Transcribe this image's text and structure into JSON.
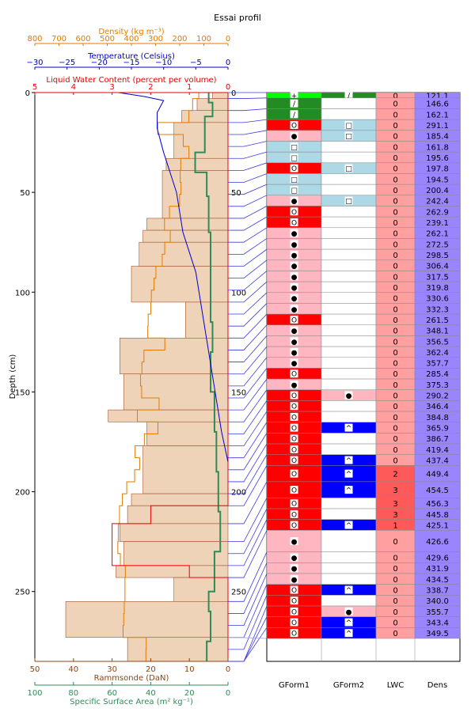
{
  "chart_data": {
    "type": "profile",
    "title": "Essai profil",
    "ylabel": "Depth (cm)",
    "y_ticks": [
      "0",
      "50",
      "100",
      "150",
      "200",
      "250"
    ],
    "ylim": [
      0,
      285
    ],
    "depth_ticks_inner": [
      "0",
      "50",
      "100",
      "150",
      "200",
      "250"
    ],
    "top_axes": [
      {
        "label": "Density (kg m⁻³)",
        "color": "#e07b00",
        "range": [
          800,
          0
        ],
        "ticks": [
          "800",
          "700",
          "600",
          "500",
          "400",
          "300",
          "200",
          "100",
          "0"
        ]
      },
      {
        "label": "Temperature (Celsius)",
        "color": "#0000cc",
        "range": [
          -30,
          0
        ],
        "ticks": [
          "−30",
          "−25",
          "−20",
          "−15",
          "−10",
          "−5",
          "0"
        ]
      },
      {
        "label": "Liquid Water Content (percent per volume)",
        "color": "#ee0000",
        "range": [
          5,
          0
        ],
        "ticks": [
          "5",
          "4",
          "3",
          "2",
          "1",
          "0"
        ]
      }
    ],
    "bottom_axes": [
      {
        "label": "Rammsonde (DaN)",
        "color": "#8b4513",
        "range": [
          50,
          0
        ],
        "ticks": [
          "50",
          "40",
          "30",
          "20",
          "10",
          "0"
        ]
      },
      {
        "label": "Specific Surface Area (m²  kg⁻¹)",
        "color": "#2e8b57",
        "range": [
          100,
          0
        ],
        "ticks": [
          "100",
          "80",
          "60",
          "40",
          "20",
          "0"
        ]
      }
    ],
    "table_headers": [
      "GForm1",
      "GForm2",
      "LWC",
      "Dens"
    ],
    "temperature_profile": [
      [
        -17,
        0
      ],
      [
        -13,
        2
      ],
      [
        -10,
        4
      ],
      [
        -11,
        10
      ],
      [
        -11,
        18
      ],
      [
        -10,
        30
      ],
      [
        -8,
        50
      ],
      [
        -7,
        70
      ],
      [
        -5,
        90
      ],
      [
        -4,
        110
      ],
      [
        -3,
        130
      ],
      [
        -2,
        150
      ],
      [
        -1,
        170
      ],
      [
        0,
        185
      ]
    ],
    "layers": [
      {
        "top": 0,
        "bottom": 3,
        "g1": "+",
        "c1": "#00ff00",
        "g2": "/",
        "c2": "#228b22",
        "lwc": "0",
        "dens": "121.1"
      },
      {
        "top": 3,
        "bottom": 9,
        "g1": "/",
        "c1": "#228b22",
        "g2": "",
        "c2": "#ffffff",
        "lwc": "0",
        "dens": "146.6"
      },
      {
        "top": 9,
        "bottom": 15,
        "g1": "/",
        "c1": "#228b22",
        "g2": "",
        "c2": "#ffffff",
        "lwc": "0",
        "dens": "162.1"
      },
      {
        "top": 15,
        "bottom": 21,
        "g1": "O",
        "c1": "#ff0000",
        "g2": "□",
        "c2": "#add8e6",
        "lwc": "0",
        "dens": "291.1"
      },
      {
        "top": 21,
        "bottom": 27,
        "g1": "●",
        "c1": "#ffb6c1",
        "g2": "□",
        "c2": "#add8e6",
        "lwc": "0",
        "dens": "185.4"
      },
      {
        "top": 27,
        "bottom": 33,
        "g1": "□",
        "c1": "#add8e6",
        "g2": "",
        "c2": "#ffffff",
        "lwc": "0",
        "dens": "161.8"
      },
      {
        "top": 33,
        "bottom": 39,
        "g1": "□",
        "c1": "#add8e6",
        "g2": "",
        "c2": "#ffffff",
        "lwc": "0",
        "dens": "195.6"
      },
      {
        "top": 39,
        "bottom": 45,
        "g1": "O",
        "c1": "#ff0000",
        "g2": "□",
        "c2": "#add8e6",
        "lwc": "0",
        "dens": "197.8"
      },
      {
        "top": 45,
        "bottom": 51,
        "g1": "□",
        "c1": "#add8e6",
        "g2": "",
        "c2": "#ffffff",
        "lwc": "0",
        "dens": "194.5"
      },
      {
        "top": 51,
        "bottom": 57,
        "g1": "□",
        "c1": "#add8e6",
        "g2": "",
        "c2": "#ffffff",
        "lwc": "0",
        "dens": "200.4"
      },
      {
        "top": 57,
        "bottom": 63,
        "g1": "●",
        "c1": "#ffb6c1",
        "g2": "□",
        "c2": "#add8e6",
        "lwc": "0",
        "dens": "242.4"
      },
      {
        "top": 63,
        "bottom": 69,
        "g1": "O",
        "c1": "#ff0000",
        "g2": "",
        "c2": "#ffffff",
        "lwc": "0",
        "dens": "262.9"
      },
      {
        "top": 69,
        "bottom": 75,
        "g1": "O",
        "c1": "#ff0000",
        "g2": "",
        "c2": "#ffffff",
        "lwc": "0",
        "dens": "239.1"
      },
      {
        "top": 75,
        "bottom": 81,
        "g1": "●",
        "c1": "#ffb6c1",
        "g2": "",
        "c2": "#ffffff",
        "lwc": "0",
        "dens": "262.1"
      },
      {
        "top": 81,
        "bottom": 87,
        "g1": "●",
        "c1": "#ffb6c1",
        "g2": "",
        "c2": "#ffffff",
        "lwc": "0",
        "dens": "272.5"
      },
      {
        "top": 87,
        "bottom": 93,
        "g1": "●",
        "c1": "#ffb6c1",
        "g2": "",
        "c2": "#ffffff",
        "lwc": "0",
        "dens": "298.5"
      },
      {
        "top": 93,
        "bottom": 99,
        "g1": "●",
        "c1": "#ffb6c1",
        "g2": "",
        "c2": "#ffffff",
        "lwc": "0",
        "dens": "306.4"
      },
      {
        "top": 99,
        "bottom": 105,
        "g1": "●",
        "c1": "#ffb6c1",
        "g2": "",
        "c2": "#ffffff",
        "lwc": "0",
        "dens": "317.5"
      },
      {
        "top": 105,
        "bottom": 111,
        "g1": "●",
        "c1": "#ffb6c1",
        "g2": "",
        "c2": "#ffffff",
        "lwc": "0",
        "dens": "319.8"
      },
      {
        "top": 111,
        "bottom": 117,
        "g1": "●",
        "c1": "#ffb6c1",
        "g2": "",
        "c2": "#ffffff",
        "lwc": "0",
        "dens": "330.6"
      },
      {
        "top": 117,
        "bottom": 123,
        "g1": "●",
        "c1": "#ffb6c1",
        "g2": "",
        "c2": "#ffffff",
        "lwc": "0",
        "dens": "332.3"
      },
      {
        "top": 123,
        "bottom": 129,
        "g1": "O",
        "c1": "#ff0000",
        "g2": "",
        "c2": "#ffffff",
        "lwc": "0",
        "dens": "261.5"
      },
      {
        "top": 129,
        "bottom": 135,
        "g1": "●",
        "c1": "#ffb6c1",
        "g2": "",
        "c2": "#ffffff",
        "lwc": "0",
        "dens": "348.1"
      },
      {
        "top": 135,
        "bottom": 141,
        "g1": "●",
        "c1": "#ffb6c1",
        "g2": "",
        "c2": "#ffffff",
        "lwc": "0",
        "dens": "356.5"
      },
      {
        "top": 141,
        "bottom": 147,
        "g1": "●",
        "c1": "#ffb6c1",
        "g2": "",
        "c2": "#ffffff",
        "lwc": "0",
        "dens": "362.4"
      },
      {
        "top": 147,
        "bottom": 153,
        "g1": "●",
        "c1": "#ffb6c1",
        "g2": "",
        "c2": "#ffffff",
        "lwc": "0",
        "dens": "357.7"
      },
      {
        "top": 153,
        "bottom": 159,
        "g1": "O",
        "c1": "#ff0000",
        "g2": "",
        "c2": "#ffffff",
        "lwc": "0",
        "dens": "285.4"
      },
      {
        "top": 159,
        "bottom": 165,
        "g1": "●",
        "c1": "#ffb6c1",
        "g2": "",
        "c2": "#ffffff",
        "lwc": "0",
        "dens": "375.3"
      },
      {
        "top": 165,
        "bottom": 171,
        "g1": "O",
        "c1": "#ff0000",
        "g2": "●",
        "c2": "#ffb6c1",
        "lwc": "0",
        "dens": "290.2"
      },
      {
        "top": 171,
        "bottom": 177,
        "g1": "O",
        "c1": "#ff0000",
        "g2": "",
        "c2": "#ffffff",
        "lwc": "0",
        "dens": "346.4"
      },
      {
        "top": 177,
        "bottom": 183,
        "g1": "O",
        "c1": "#ff0000",
        "g2": "",
        "c2": "#ffffff",
        "lwc": "0",
        "dens": "384.8"
      },
      {
        "top": 183,
        "bottom": 189,
        "g1": "O",
        "c1": "#ff0000",
        "g2": "^",
        "c2": "#0000ff",
        "lwc": "0",
        "dens": "365.9"
      },
      {
        "top": 189,
        "bottom": 195,
        "g1": "O",
        "c1": "#ff0000",
        "g2": "",
        "c2": "#ffffff",
        "lwc": "0",
        "dens": "386.7"
      },
      {
        "top": 195,
        "bottom": 201,
        "g1": "O",
        "c1": "#ff0000",
        "g2": "",
        "c2": "#ffffff",
        "lwc": "0",
        "dens": "419.4"
      },
      {
        "top": 201,
        "bottom": 207,
        "g1": "O",
        "c1": "#ff0000",
        "g2": "^",
        "c2": "#0000ff",
        "lwc": "0",
        "dens": "437.4"
      },
      {
        "top": 207,
        "bottom": 216,
        "g1": "O",
        "c1": "#ff0000",
        "g2": "^",
        "c2": "#0000ff",
        "lwc": "2",
        "dens": "449.4"
      },
      {
        "top": 216,
        "bottom": 225,
        "g1": "O",
        "c1": "#ff0000",
        "g2": "^",
        "c2": "#0000ff",
        "lwc": "3",
        "dens": "454.5"
      },
      {
        "top": 225,
        "bottom": 231,
        "g1": "O",
        "c1": "#ff0000",
        "g2": "",
        "c2": "#ffffff",
        "lwc": "3",
        "dens": "456.3"
      },
      {
        "top": 231,
        "bottom": 237,
        "g1": "O",
        "c1": "#ff0000",
        "g2": "",
        "c2": "#ffffff",
        "lwc": "3",
        "dens": "445.8"
      },
      {
        "top": 237,
        "bottom": 243,
        "g1": "O",
        "c1": "#ff0000",
        "g2": "^",
        "c2": "#0000ff",
        "lwc": "1",
        "dens": "425.1"
      },
      {
        "top": 243,
        "bottom": 255,
        "g1": "●",
        "c1": "#ffb6c1",
        "g2": "",
        "c2": "#ffffff",
        "lwc": "0",
        "dens": "426.6"
      },
      {
        "top": 255,
        "bottom": 261,
        "g1": "●",
        "c1": "#ffb6c1",
        "g2": "",
        "c2": "#ffffff",
        "lwc": "0",
        "dens": "429.6"
      },
      {
        "top": 261,
        "bottom": 267,
        "g1": "●",
        "c1": "#ffb6c1",
        "g2": "",
        "c2": "#ffffff",
        "lwc": "0",
        "dens": "431.9"
      },
      {
        "top": 267,
        "bottom": 273,
        "g1": "●",
        "c1": "#ffb6c1",
        "g2": "",
        "c2": "#ffffff",
        "lwc": "0",
        "dens": "434.5"
      },
      {
        "top": 273,
        "bottom": 279,
        "g1": "O",
        "c1": "#ff0000",
        "g2": "^",
        "c2": "#0000ff",
        "lwc": "0",
        "dens": "338.7"
      },
      {
        "top": 279,
        "bottom": 285,
        "g1": "O",
        "c1": "#ff0000",
        "g2": "",
        "c2": "#ffffff",
        "lwc": "0",
        "dens": "340.0"
      },
      {
        "top": 285,
        "bottom": 291,
        "g1": "O",
        "c1": "#ff0000",
        "g2": "●",
        "c2": "#ffb6c1",
        "lwc": "0",
        "dens": "355.7"
      },
      {
        "top": 291,
        "bottom": 297,
        "g1": "O",
        "c1": "#ff0000",
        "g2": "^",
        "c2": "#0000ff",
        "lwc": "0",
        "dens": "343.4"
      },
      {
        "top": 297,
        "bottom": 303,
        "g1": "O",
        "c1": "#ff0000",
        "g2": "^",
        "c2": "#0000ff",
        "lwc": "0",
        "dens": "349.5"
      }
    ]
  }
}
